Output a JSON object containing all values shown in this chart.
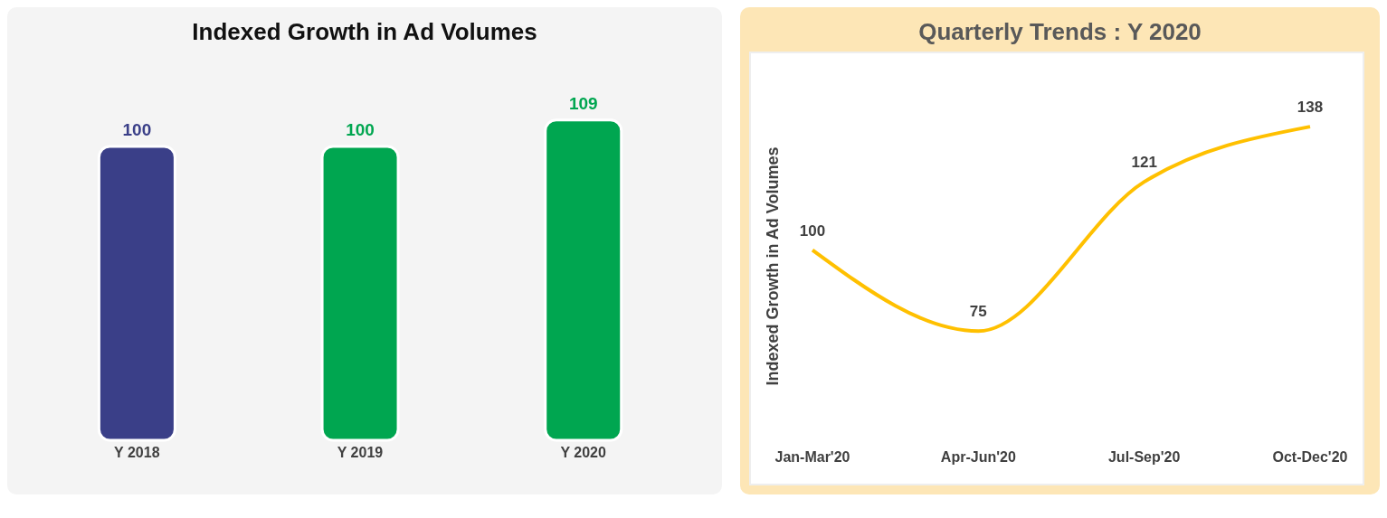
{
  "chart_data": [
    {
      "type": "bar",
      "title": "Indexed Growth in Ad Volumes",
      "categories": [
        "Y 2018",
        "Y 2019",
        "Y 2020"
      ],
      "values": [
        100,
        100,
        109
      ],
      "colors": [
        "#3a3f88",
        "#00a650",
        "#00a650"
      ],
      "data_labels": true
    },
    {
      "type": "line",
      "title": "Quarterly Trends : Y 2020",
      "ylabel": "Indexed Growth in Ad Volumes",
      "categories": [
        "Jan-Mar'20",
        "Apr-Jun'20",
        "Jul-Sep'20",
        "Oct-Dec'20"
      ],
      "series": [
        {
          "color": "#ffc000",
          "values": [
            100,
            75,
            121,
            138
          ]
        }
      ],
      "marker": "none",
      "data_labels": true
    }
  ]
}
